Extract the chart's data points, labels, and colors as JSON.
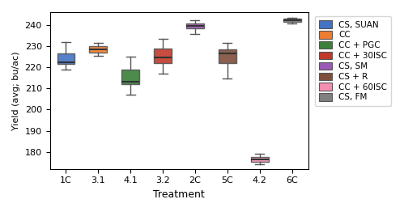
{
  "xlabel": "Treatment",
  "ylabel": "Yield (avg; bu/ac)",
  "treatments": [
    "1C",
    "3.1",
    "4.1",
    "3.2",
    "2C",
    "5C",
    "4.2",
    "6C"
  ],
  "colors": [
    "#4472c4",
    "#ed7d31",
    "#3a7f3a",
    "#c0392b",
    "#9b59b6",
    "#7f4f3c",
    "#f48fb1",
    "#808080"
  ],
  "legend_labels": [
    "CS, SUAN",
    "CC",
    "CC + PGC",
    "CC + 30ISC",
    "CS, SM",
    "CS + R",
    "CC + 60ISC",
    "CS, FM"
  ],
  "box_data": {
    "1C": {
      "whislo": 219.0,
      "q1": 221.5,
      "med": 222.5,
      "q3": 226.5,
      "whishi": 232.0
    },
    "3.1": {
      "whislo": 225.5,
      "q1": 227.0,
      "med": 228.5,
      "q3": 230.0,
      "whishi": 231.5
    },
    "4.1": {
      "whislo": 207.0,
      "q1": 212.0,
      "med": 213.0,
      "q3": 219.0,
      "whishi": 225.0
    },
    "3.2": {
      "whislo": 217.0,
      "q1": 222.0,
      "med": 224.5,
      "q3": 229.0,
      "whishi": 233.5
    },
    "2C": {
      "whislo": 235.5,
      "q1": 238.5,
      "med": 239.5,
      "q3": 240.5,
      "whishi": 242.0
    },
    "5C": {
      "whislo": 214.5,
      "q1": 222.0,
      "med": 226.5,
      "q3": 228.5,
      "whishi": 231.5
    },
    "4.2": {
      "whislo": 174.0,
      "q1": 175.5,
      "med": 176.5,
      "q3": 177.5,
      "whishi": 179.0
    },
    "6C": {
      "whislo": 240.5,
      "q1": 241.5,
      "med": 242.0,
      "q3": 243.0,
      "whishi": 243.5
    }
  },
  "ylim": [
    172,
    246
  ],
  "yticks": [
    180,
    190,
    200,
    210,
    220,
    230,
    240
  ],
  "figsize": [
    4.99,
    2.62
  ],
  "dpi": 100,
  "box_width": 0.55
}
